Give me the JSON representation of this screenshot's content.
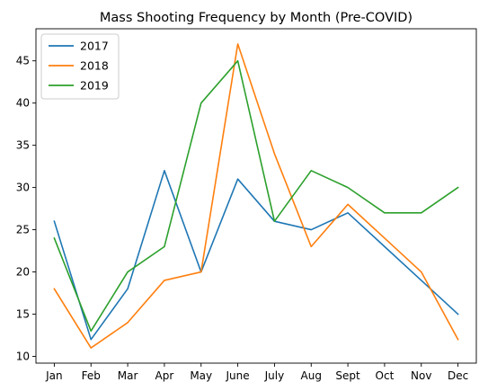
{
  "chart_data": {
    "type": "line",
    "title": "Mass Shooting Frequency by Month (Pre-COVID)",
    "xlabel": "",
    "ylabel": "",
    "categories": [
      "Jan",
      "Feb",
      "Mar",
      "Apr",
      "May",
      "June",
      "July",
      "Aug",
      "Sept",
      "Oct",
      "Nov",
      "Dec"
    ],
    "ylim": [
      9.2,
      48.8
    ],
    "yticks": [
      10,
      15,
      20,
      25,
      30,
      35,
      40,
      45
    ],
    "grid": false,
    "legend_position": "top-left",
    "series": [
      {
        "name": "2017",
        "color": "#1f77b4",
        "values": [
          26,
          12,
          18,
          32,
          20,
          31,
          26,
          25,
          27,
          23,
          19,
          15
        ]
      },
      {
        "name": "2018",
        "color": "#ff7f0e",
        "values": [
          18,
          11,
          14,
          19,
          20,
          47,
          34,
          23,
          28,
          24,
          20,
          12
        ]
      },
      {
        "name": "2019",
        "color": "#2ca02c",
        "values": [
          24,
          13,
          20,
          23,
          40,
          45,
          26,
          32,
          30,
          27,
          27,
          30
        ]
      }
    ]
  }
}
